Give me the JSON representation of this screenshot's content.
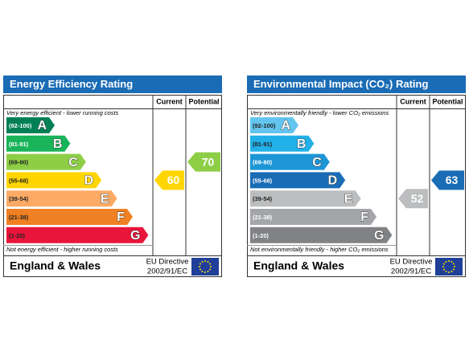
{
  "panels": [
    {
      "title": "Energy Efficiency Rating",
      "columns": [
        "Current",
        "Potential"
      ],
      "top_note": "Very energy efficient - lower running costs",
      "bottom_note": "Not energy efficient - higher running costs",
      "bands": [
        {
          "range": "(92-100)",
          "letter": "A",
          "color": "#008054",
          "text_color": "#ffffff"
        },
        {
          "range": "(81-91)",
          "letter": "B",
          "color": "#19b459",
          "text_color": "#ffffff"
        },
        {
          "range": "(69-80)",
          "letter": "C",
          "color": "#8dce46",
          "text_color": "#222222"
        },
        {
          "range": "(55-68)",
          "letter": "D",
          "color": "#ffd500",
          "text_color": "#222222"
        },
        {
          "range": "(39-54)",
          "letter": "E",
          "color": "#fcaa65",
          "text_color": "#222222"
        },
        {
          "range": "(21-38)",
          "letter": "F",
          "color": "#ef8023",
          "text_color": "#222222"
        },
        {
          "range": "(1-20)",
          "letter": "G",
          "color": "#e9153b",
          "text_color": "#222222"
        }
      ],
      "current": 60,
      "potential": 70,
      "region": "England & Wales",
      "directive": "EU Directive",
      "directive_code": "2002/91/EC"
    },
    {
      "title": "Environmental Impact (CO₂) Rating",
      "columns": [
        "Current",
        "Potential"
      ],
      "top_note": "Very environmentally friendly - lower CO₂ emissions",
      "bottom_note": "Not environmentally friendly - higher CO₂ emissions",
      "bands": [
        {
          "range": "(92-100)",
          "letter": "A",
          "color": "#63c5ef",
          "text_color": "#222222"
        },
        {
          "range": "(81-91)",
          "letter": "B",
          "color": "#22b0e8",
          "text_color": "#222222"
        },
        {
          "range": "(69-80)",
          "letter": "C",
          "color": "#1e96d6",
          "text_color": "#ffffff"
        },
        {
          "range": "(55-68)",
          "letter": "D",
          "color": "#1a6cb5",
          "text_color": "#ffffff"
        },
        {
          "range": "(39-54)",
          "letter": "E",
          "color": "#bbbdbf",
          "text_color": "#222222"
        },
        {
          "range": "(21-38)",
          "letter": "F",
          "color": "#a3a5a8",
          "text_color": "#ffffff"
        },
        {
          "range": "(1-20)",
          "letter": "G",
          "color": "#808285",
          "text_color": "#ffffff"
        }
      ],
      "current": 52,
      "potential": 63,
      "region": "England & Wales",
      "directive": "EU Directive",
      "directive_code": "2002/91/EC"
    }
  ]
}
